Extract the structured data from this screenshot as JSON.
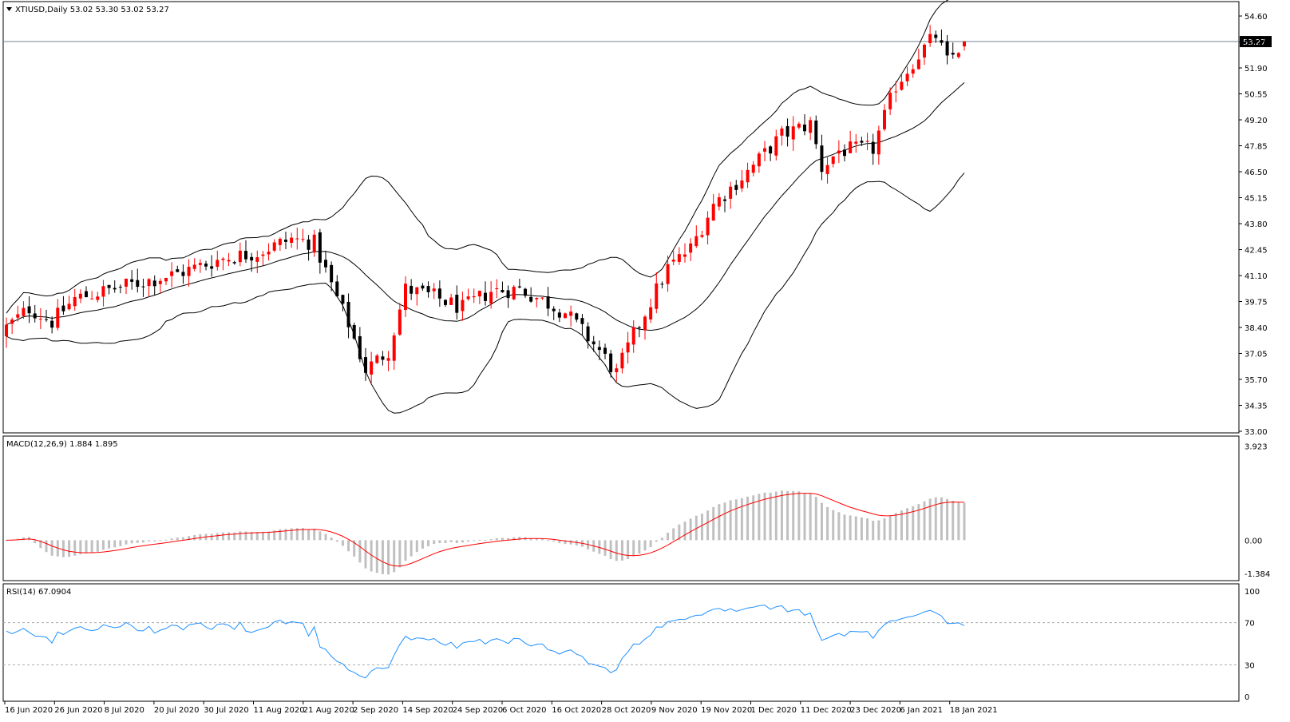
{
  "window": {
    "header_text": "XTIUSD,Daily  53.02 53.30 53.02 53.27",
    "current_price_label": "53.27"
  },
  "colors": {
    "bull": "#ff0000",
    "bear": "#000000",
    "bands": "#000000",
    "macd_hist": "#c0c0c0",
    "macd_signal": "#ff0000",
    "rsi": "#1e90ff",
    "grid_level": "#a9a9a9",
    "price_line": "#708090"
  },
  "chart_data": [
    {
      "type": "candlestick",
      "title": "XTIUSD,Daily",
      "ohlc_last": [
        53.02,
        53.3,
        53.02,
        53.27
      ],
      "y_ticks": [
        "54.60",
        "53.25",
        "51.90",
        "50.55",
        "49.20",
        "47.85",
        "46.50",
        "45.15",
        "43.80",
        "42.45",
        "41.10",
        "39.75",
        "38.40",
        "37.05",
        "35.70",
        "34.35",
        "33.00"
      ],
      "ylim": [
        33.0,
        55.1
      ],
      "x_tick_labels": [
        "16 Jun 2020",
        "26 Jun 2020",
        "8 Jul 2020",
        "20 Jul 2020",
        "30 Jul 2020",
        "11 Aug 2020",
        "21 Aug 2020",
        "2 Sep 2020",
        "14 Sep 2020",
        "24 Sep 2020",
        "6 Oct 2020",
        "16 Oct 2020",
        "28 Oct 2020",
        "9 Nov 2020",
        "19 Nov 2020",
        "1 Dec 2020",
        "11 Dec 2020",
        "23 Dec 2020",
        "6 Jan 2021",
        "18 Jan 2021"
      ],
      "overlay": "Bollinger Bands (upper, middle, lower)",
      "key_points": {
        "start_close": 38.4,
        "aug_peak": 43.5,
        "sep_low": 36.2,
        "oct_low": 33.6,
        "nov_breakout": 45.5,
        "dec_peak": 49.0,
        "jan_high": 53.9,
        "last_close": 53.27
      }
    },
    {
      "type": "bar+line",
      "title": "MACD(12,26,9) 1.884 1.895",
      "y_ticks": [
        "3.923",
        "0.00",
        "-1.384"
      ],
      "ylim": [
        -1.45,
        4.0
      ],
      "series": [
        "histogram",
        "signal"
      ]
    },
    {
      "type": "line",
      "title": "RSI(14) 67.0904",
      "y_ticks": [
        "100",
        "70",
        "30",
        "0"
      ],
      "levels": [
        70,
        30
      ],
      "ylim": [
        0,
        100
      ]
    }
  ]
}
